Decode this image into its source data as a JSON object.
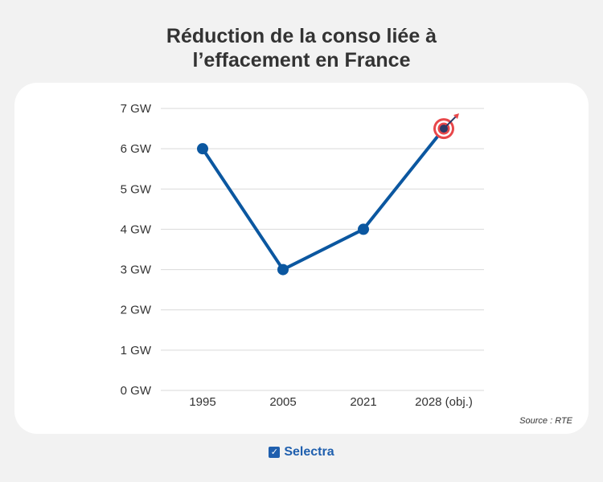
{
  "title_lines": [
    "Réduction de la conso liée à",
    "l’effacement en France"
  ],
  "source": "Source : RTE",
  "brand": "Selectra",
  "colors": {
    "line": "#0b57a0",
    "grid": "#d9d9d9",
    "target_red": "#e8474a",
    "target_navy": "#2b3a67"
  },
  "chart_data": {
    "type": "line",
    "title": "",
    "xlabel": "",
    "ylabel": "",
    "categories": [
      "1995",
      "2005",
      "2021",
      "2028 (obj.)"
    ],
    "series": [
      {
        "values": [
          6,
          3,
          4,
          6.5
        ]
      }
    ],
    "yticks": [
      "0 GW",
      "1 GW",
      "2 GW",
      "3 GW",
      "4 GW",
      "5 GW",
      "6 GW",
      "7 GW"
    ],
    "ylim": [
      0,
      7
    ],
    "grid": true,
    "target_marker_on": "2028 (obj.)",
    "target_icon": "target-bullseye-icon"
  }
}
